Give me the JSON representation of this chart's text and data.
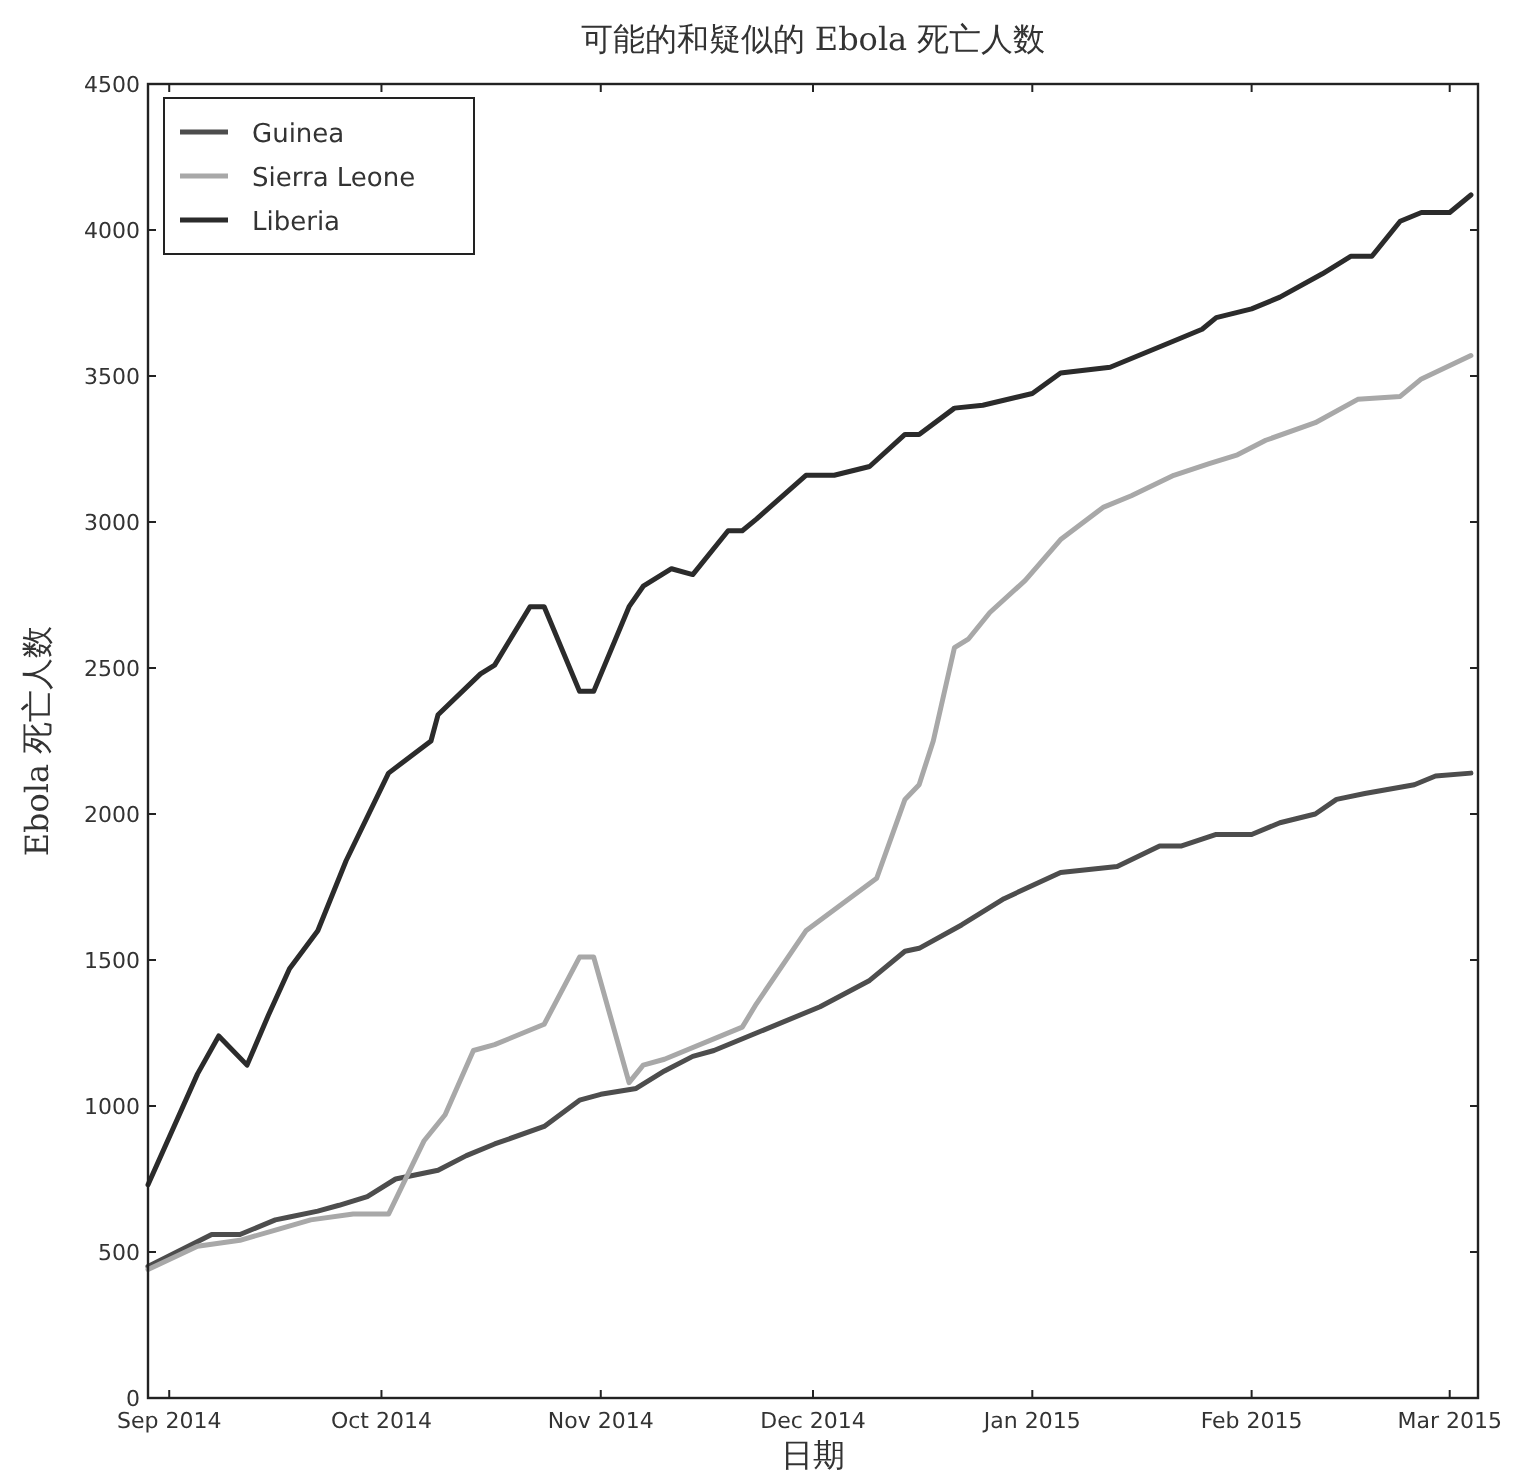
{
  "chart_data": {
    "type": "line",
    "title": "可能的和疑似的 Ebola 死亡人数",
    "xlabel": "日期",
    "ylabel": "Ebola 死亡人数",
    "xlim": [
      "2014-08-29",
      "2015-03-05"
    ],
    "xticks": [
      {
        "value": "2014-09-01",
        "label": "Sep 2014"
      },
      {
        "value": "2014-10-01",
        "label": "Oct 2014"
      },
      {
        "value": "2014-11-01",
        "label": "Nov 2014"
      },
      {
        "value": "2014-12-01",
        "label": "Dec 2014"
      },
      {
        "value": "2015-01-01",
        "label": "Jan 2015"
      },
      {
        "value": "2015-02-01",
        "label": "Feb 2015"
      },
      {
        "value": "2015-03-01",
        "label": "Mar 2015"
      }
    ],
    "ylim": [
      0,
      4500
    ],
    "yticks": [
      0,
      500,
      1000,
      1500,
      2000,
      2500,
      3000,
      3500,
      4000,
      4500
    ],
    "grid": false,
    "legend": "top left",
    "marker": "none",
    "line_style": "solid",
    "series": [
      {
        "name": "Guinea",
        "color": "#4d4d4d",
        "x": [
          "2014-08-29",
          "2014-09-07",
          "2014-09-11",
          "2014-09-16",
          "2014-09-18",
          "2014-09-22",
          "2014-09-25",
          "2014-09-29",
          "2014-10-03",
          "2014-10-09",
          "2014-10-13",
          "2014-10-17",
          "2014-10-24",
          "2014-10-29",
          "2014-11-01",
          "2014-11-06",
          "2014-11-10",
          "2014-11-14",
          "2014-11-17",
          "2014-11-23",
          "2014-12-02",
          "2014-12-09",
          "2014-12-14",
          "2014-12-16",
          "2014-12-22",
          "2014-12-28",
          "2015-01-05",
          "2015-01-13",
          "2015-01-19",
          "2015-01-22",
          "2015-01-27",
          "2015-02-01",
          "2015-02-05",
          "2015-02-10",
          "2015-02-13",
          "2015-02-17",
          "2015-02-24",
          "2015-02-27",
          "2015-03-04"
        ],
        "values": [
          450,
          560,
          560,
          610,
          620,
          640,
          660,
          690,
          750,
          780,
          830,
          870,
          930,
          1020,
          1040,
          1060,
          1120,
          1170,
          1190,
          1250,
          1340,
          1430,
          1530,
          1540,
          1620,
          1710,
          1800,
          1820,
          1890,
          1890,
          1930,
          1930,
          1970,
          2000,
          2050,
          2070,
          2100,
          2130,
          2140
        ]
      },
      {
        "name": "Sierra Leone",
        "color": "#a8a8a8",
        "x": [
          "2014-08-29",
          "2014-09-05",
          "2014-09-11",
          "2014-09-16",
          "2014-09-21",
          "2014-09-27",
          "2014-10-02",
          "2014-10-07",
          "2014-10-10",
          "2014-10-14",
          "2014-10-17",
          "2014-10-24",
          "2014-10-29",
          "2014-10-31",
          "2014-11-05",
          "2014-11-07",
          "2014-11-10",
          "2014-11-21",
          "2014-11-23",
          "2014-11-30",
          "2014-12-10",
          "2014-12-14",
          "2014-12-16",
          "2014-12-18",
          "2014-12-21",
          "2014-12-23",
          "2014-12-26",
          "2014-12-31",
          "2015-01-05",
          "2015-01-11",
          "2015-01-15",
          "2015-01-21",
          "2015-01-26",
          "2015-01-30",
          "2015-02-03",
          "2015-02-10",
          "2015-02-16",
          "2015-02-22",
          "2015-02-25",
          "2015-03-04"
        ],
        "values": [
          440,
          520,
          540,
          575,
          610,
          630,
          630,
          880,
          970,
          1190,
          1210,
          1280,
          1510,
          1510,
          1080,
          1140,
          1160,
          1270,
          1350,
          1600,
          1780,
          2050,
          2100,
          2250,
          2570,
          2600,
          2690,
          2800,
          2940,
          3050,
          3090,
          3160,
          3200,
          3230,
          3280,
          3340,
          3420,
          3430,
          3490,
          3570
        ]
      },
      {
        "name": "Liberia",
        "color": "#2b2b2b",
        "x": [
          "2014-08-29",
          "2014-09-05",
          "2014-09-08",
          "2014-09-12",
          "2014-09-15",
          "2014-09-18",
          "2014-09-22",
          "2014-09-26",
          "2014-10-02",
          "2014-10-08",
          "2014-10-09",
          "2014-10-15",
          "2014-10-17",
          "2014-10-22",
          "2014-10-24",
          "2014-10-29",
          "2014-10-31",
          "2014-11-05",
          "2014-11-07",
          "2014-11-11",
          "2014-11-14",
          "2014-11-19",
          "2014-11-21",
          "2014-11-23",
          "2014-11-30",
          "2014-12-04",
          "2014-12-09",
          "2014-12-14",
          "2014-12-16",
          "2014-12-21",
          "2014-12-25",
          "2015-01-01",
          "2015-01-05",
          "2015-01-12",
          "2015-01-21",
          "2015-01-25",
          "2015-01-27",
          "2015-02-01",
          "2015-02-05",
          "2015-02-11",
          "2015-02-15",
          "2015-02-18",
          "2015-02-22",
          "2015-02-25",
          "2015-03-01",
          "2015-03-04"
        ],
        "values": [
          730,
          1110,
          1240,
          1140,
          1310,
          1470,
          1600,
          1840,
          2140,
          2250,
          2340,
          2480,
          2510,
          2710,
          2710,
          2420,
          2420,
          2710,
          2780,
          2840,
          2820,
          2970,
          2970,
          3010,
          3160,
          3160,
          3190,
          3300,
          3300,
          3390,
          3400,
          3440,
          3510,
          3530,
          3620,
          3660,
          3700,
          3730,
          3770,
          3850,
          3910,
          3910,
          4030,
          4060,
          4060,
          4120
        ]
      }
    ]
  }
}
